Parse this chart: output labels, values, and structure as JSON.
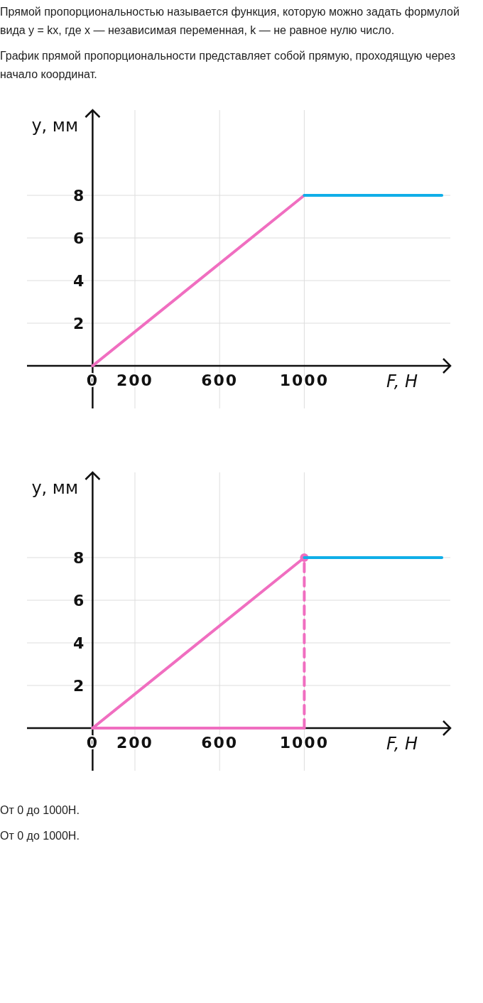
{
  "chart_data": [
    {
      "type": "line",
      "annotations": [
        "Прямой пропорциональностью называется функция, которую можно задать формулой вида y = kx, где x — независимая переменная, k — не равное нулю число.",
        "График прямой пропорциональности представляет собой прямую, проходящую через начало координат."
      ],
      "xlabel": "F, Н",
      "ylabel": "y, мм",
      "xlim": [
        -310,
        1690
      ],
      "ylim": [
        -2,
        12
      ],
      "xticks": [
        0,
        200,
        600,
        1000
      ],
      "yticks": [
        2,
        4,
        6,
        8
      ],
      "grid": true,
      "series": [
        {
          "color": "#f06ec0",
          "x": [
            0,
            1000
          ],
          "values": [
            0,
            8
          ]
        },
        {
          "color": "#10aee8",
          "x": [
            1000,
            1650
          ],
          "values": [
            8,
            8
          ]
        }
      ]
    },
    {
      "type": "line",
      "annotations": [
        "От 0 до 1000H.",
        "От 0 до 1000H."
      ],
      "xlabel": "F, Н",
      "ylabel": "y, мм",
      "xlim": [
        -310,
        1690
      ],
      "ylim": [
        -2,
        12
      ],
      "xticks": [
        0,
        200,
        600,
        1000
      ],
      "yticks": [
        2,
        4,
        6,
        8
      ],
      "grid": true,
      "series": [
        {
          "color": "#f06ec0",
          "x": [
            0,
            1000
          ],
          "values": [
            0,
            8
          ]
        },
        {
          "color": "#f06ec0",
          "x": [
            0,
            1000
          ],
          "values": [
            0,
            0
          ]
        },
        {
          "color": "#f06ec0",
          "x": [
            1000,
            1000
          ],
          "values": [
            0,
            8
          ],
          "line_style": "dashed"
        },
        {
          "color": "#10aee8",
          "x": [
            1000,
            1650
          ],
          "values": [
            8,
            8
          ]
        },
        {
          "type": "scatter",
          "color": "#f06ec0",
          "x": [
            1000
          ],
          "values": [
            8
          ],
          "marker": "circle"
        }
      ]
    }
  ]
}
